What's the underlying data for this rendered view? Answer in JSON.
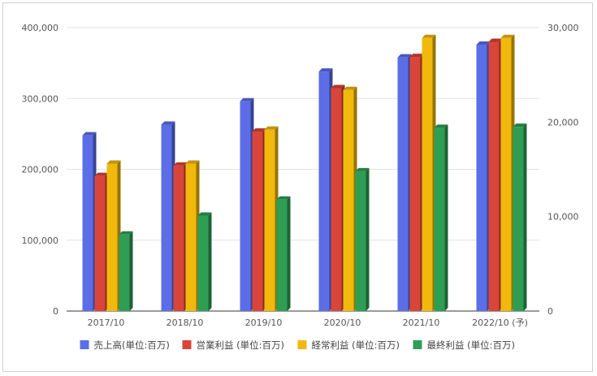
{
  "chart_data": {
    "type": "bar",
    "categories": [
      "2017/10",
      "2018/10",
      "2019/10",
      "2020/10",
      "2021/10",
      "2022/10 (予)"
    ],
    "series": [
      {
        "name": "売上高(単位:百万)",
        "axis": "left",
        "color": "#5b6ee8",
        "values": [
          248000,
          263000,
          296000,
          338000,
          358000,
          376000
        ]
      },
      {
        "name": "営業利益 (単位:百万)",
        "axis": "right",
        "color": "#d9453a",
        "values": [
          14300,
          15400,
          19000,
          23600,
          26900,
          28500
        ]
      },
      {
        "name": "経常利益 (単位:百万)",
        "axis": "right",
        "color": "#f1b90c",
        "values": [
          15600,
          15600,
          19200,
          23400,
          28900,
          28900
        ]
      },
      {
        "name": "最終利益 (単位:百万)",
        "axis": "right",
        "color": "#2f9e55",
        "values": [
          8100,
          10100,
          11800,
          14800,
          19400,
          19500
        ]
      }
    ],
    "y_left": {
      "ylim": [
        0,
        400000
      ],
      "ticks": [
        "0",
        "100,000",
        "200,000",
        "300,000",
        "400,000"
      ]
    },
    "y_right": {
      "ylim": [
        0,
        30000
      ],
      "ticks": [
        "0",
        "10,000",
        "20,000",
        "30,000"
      ]
    },
    "grid": true,
    "legend_position": "bottom",
    "title": "",
    "xlabel": "",
    "ylabel": ""
  }
}
